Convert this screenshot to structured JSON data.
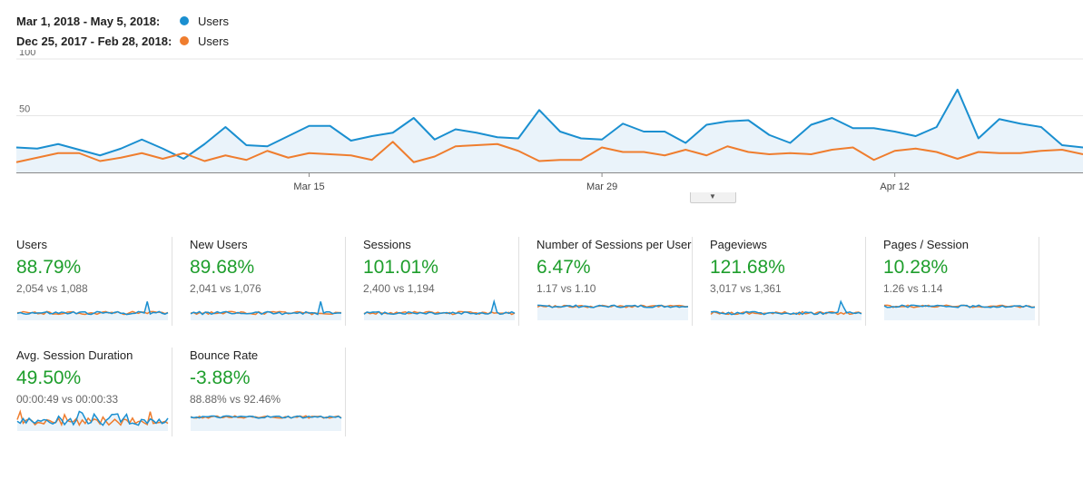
{
  "legend": [
    {
      "range": "Mar 1, 2018 - May 5, 2018:",
      "series": "Users",
      "color": "#1a8fd0"
    },
    {
      "range": "Dec 25, 2017 - Feb 28, 2018:",
      "series": "Users",
      "color": "#ef7d2e"
    }
  ],
  "chart_data": {
    "type": "line",
    "ylim": [
      0,
      100
    ],
    "yticks": [
      "100",
      "50"
    ],
    "xticks": [
      {
        "label": "Mar 15",
        "index": 14
      },
      {
        "label": "Mar 29",
        "index": 28
      },
      {
        "label": "Apr 12",
        "index": 42
      }
    ],
    "series": [
      {
        "name": "Users",
        "color": "#1a8fd0",
        "fill": "#eaf3fa",
        "values": [
          22,
          21,
          25,
          20,
          15,
          21,
          29,
          21,
          12,
          25,
          40,
          24,
          23,
          32,
          41,
          41,
          28,
          32,
          35,
          48,
          29,
          38,
          35,
          31,
          30,
          55,
          36,
          30,
          29,
          43,
          36,
          36,
          26,
          42,
          45,
          46,
          33,
          26,
          42,
          48,
          39,
          39,
          36,
          32,
          40,
          73,
          30,
          47,
          43,
          40,
          24,
          22
        ]
      },
      {
        "name": "Users",
        "color": "#ef7d2e",
        "values": [
          9,
          13,
          17,
          17,
          10,
          13,
          17,
          12,
          17,
          10,
          15,
          11,
          19,
          13,
          17,
          16,
          15,
          11,
          27,
          9,
          14,
          23,
          24,
          25,
          19,
          10,
          11,
          11,
          22,
          18,
          18,
          15,
          20,
          15,
          23,
          18,
          16,
          17,
          16,
          20,
          22,
          11,
          19,
          21,
          18,
          12,
          18,
          17,
          17,
          19,
          20,
          16
        ]
      }
    ]
  },
  "collapse_icon": "caret-down-icon",
  "tiles": [
    {
      "label": "Users",
      "pct": "88.79%",
      "cmp": "2,054 vs 1,088",
      "spark": "pulse"
    },
    {
      "label": "New Users",
      "pct": "89.68%",
      "cmp": "2,041 vs 1,076",
      "spark": "pulse"
    },
    {
      "label": "Sessions",
      "pct": "101.01%",
      "cmp": "2,400 vs 1,194",
      "spark": "pulse"
    },
    {
      "label": "Number of Sessions per User",
      "pct": "6.47%",
      "cmp": "1.17 vs 1.10",
      "spark": "flat"
    },
    {
      "label": "Pageviews",
      "pct": "121.68%",
      "cmp": "3,017 vs 1,361",
      "spark": "pulse2"
    },
    {
      "label": "Pages / Session",
      "pct": "10.28%",
      "cmp": "1.26 vs 1.14",
      "spark": "flatlow"
    },
    {
      "label": "Avg. Session Duration",
      "pct": "49.50%",
      "cmp": "00:00:49 vs 00:00:33",
      "spark": "noisy"
    },
    {
      "label": "Bounce Rate",
      "pct": "-3.88%",
      "cmp": "88.88% vs 92.46%",
      "spark": "flat"
    }
  ]
}
